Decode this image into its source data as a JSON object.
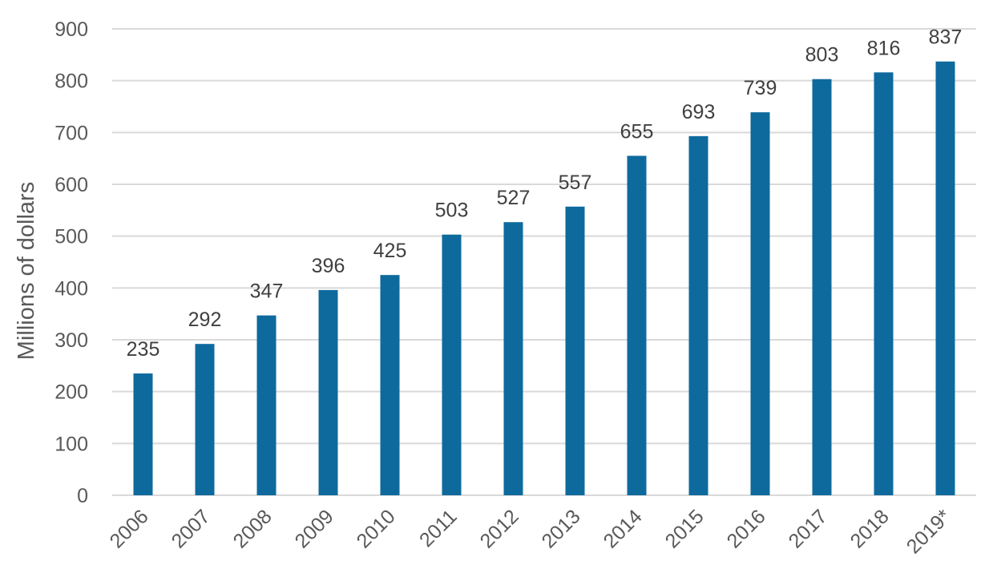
{
  "chart_data": {
    "type": "bar",
    "title": "",
    "xlabel": "",
    "ylabel": "Millions of dollars",
    "categories": [
      "2006",
      "2007",
      "2008",
      "2009",
      "2010",
      "2011",
      "2012",
      "2013",
      "2014",
      "2015",
      "2016",
      "2017",
      "2018",
      "2019*"
    ],
    "values": [
      235,
      292,
      347,
      396,
      425,
      503,
      527,
      557,
      655,
      693,
      739,
      803,
      816,
      837
    ],
    "data_labels": [
      "235",
      "292",
      "347",
      "396",
      "425",
      "503",
      "527",
      "557",
      "655",
      "693",
      "739",
      "803",
      "816",
      "837"
    ],
    "ylim": [
      0,
      900
    ],
    "yticks": [
      "0",
      "100",
      "200",
      "300",
      "400",
      "500",
      "600",
      "700",
      "800",
      "900"
    ],
    "grid": true,
    "legend": "none",
    "colors": {
      "bar": "#0e6a9d",
      "grid": "#d9d9d9",
      "tick_text": "#595959",
      "label_text": "#404040"
    }
  }
}
